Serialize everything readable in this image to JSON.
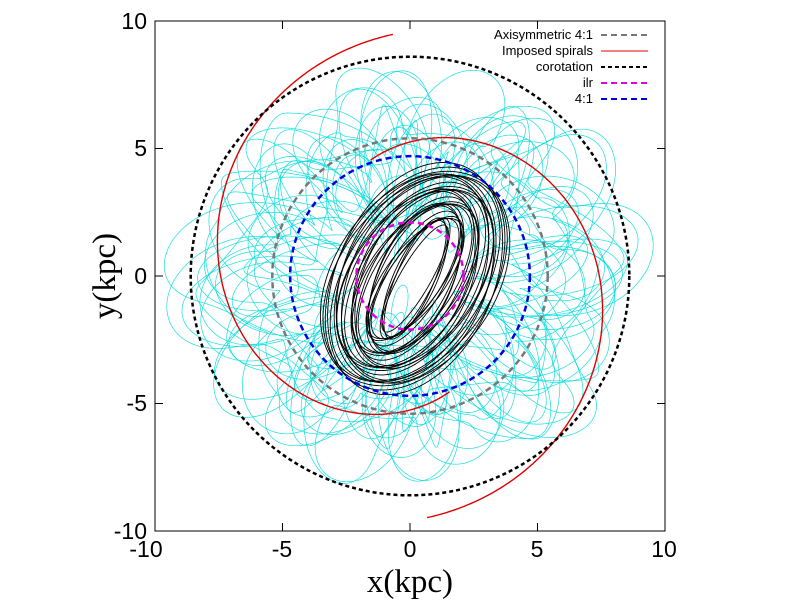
{
  "chart_data": {
    "type": "line",
    "title": "",
    "xlabel": "x(kpc)",
    "ylabel": "y(kpc)",
    "xlim": [
      -10,
      10
    ],
    "ylim": [
      -10,
      10
    ],
    "xticks": [
      "-10",
      "-5",
      "0",
      "5",
      "10"
    ],
    "yticks": [
      "-10",
      "-5",
      "0",
      "5",
      "10"
    ],
    "grid": false,
    "legend_position": "top-right",
    "series": [
      {
        "name": "Axisymmetric 4:1",
        "color": "#777777",
        "dash": "dashed",
        "shape": "circle",
        "radius": 5.4
      },
      {
        "name": "Imposed spirals",
        "color": "#e00000",
        "dash": "solid",
        "shape": "two-armed spiral",
        "inner_radius": 4.8,
        "outer_radius": 9.5
      },
      {
        "name": "corotation",
        "color": "#000000",
        "dash": "dashed",
        "shape": "circle",
        "radius": 8.6
      },
      {
        "name": "ilr",
        "color": "#e000e0",
        "dash": "dashed",
        "shape": "circle",
        "radius": 2.1
      },
      {
        "name": "4:1",
        "color": "#0000e0",
        "dash": "dashed",
        "shape": "circle",
        "radius": 4.7
      }
    ],
    "orbits": [
      {
        "name": "black orbits",
        "color": "#000000",
        "shape": "elongated ellipses",
        "semi_major_range": [
          2.4,
          4.8
        ],
        "semi_minor_range": [
          0.6,
          3.2
        ],
        "tilt_deg": 60
      },
      {
        "name": "cyan orbits",
        "color": "#00dcdc",
        "shape": "looping epicyclic orbits",
        "radius_range": [
          3.0,
          8.5
        ]
      }
    ]
  }
}
